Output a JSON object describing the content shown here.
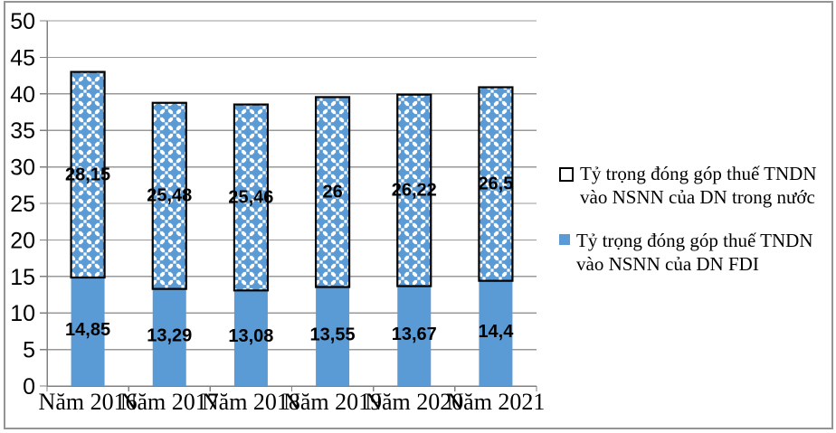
{
  "chart_data": {
    "type": "bar",
    "stacked": true,
    "title": "",
    "xlabel": "",
    "ylabel": "",
    "categories": [
      "Năm 2016",
      "Năm 2017",
      "Năm 2018",
      "Năm 2019",
      "Năm 2020",
      "Năm 2021"
    ],
    "series": [
      {
        "name": "Tỷ trọng đóng góp thuế TNDN vào NSNN của DN FDI",
        "values": [
          14.85,
          13.29,
          13.08,
          13.55,
          13.67,
          14.4
        ],
        "data_labels": [
          "14,85",
          "13,29",
          "13,08",
          "13,55",
          "13,67",
          "14,4"
        ],
        "fill": "solid",
        "color": "#5B9BD5"
      },
      {
        "name": "Tỷ trọng đóng góp thuế TNDN vào NSNN của DN trong nước",
        "values": [
          28.15,
          25.48,
          25.46,
          26,
          26.22,
          26.5
        ],
        "data_labels": [
          "28,15",
          "25,48",
          "25,46",
          "26",
          "26,22",
          "26,5"
        ],
        "fill": "diamond-pattern",
        "color": "#5B9BD5",
        "pattern_bg": "#FFFFFF",
        "border_color": "#000000"
      }
    ],
    "ylim": [
      0,
      50
    ],
    "ytick_step": 5,
    "ytick_labels": [
      "0",
      "5",
      "10",
      "15",
      "20",
      "25",
      "30",
      "35",
      "40",
      "45",
      "50"
    ],
    "grid": true,
    "legend_position": "right",
    "colors": {
      "gridline": "#999999",
      "axis": "#808080",
      "text": "#000000"
    }
  }
}
